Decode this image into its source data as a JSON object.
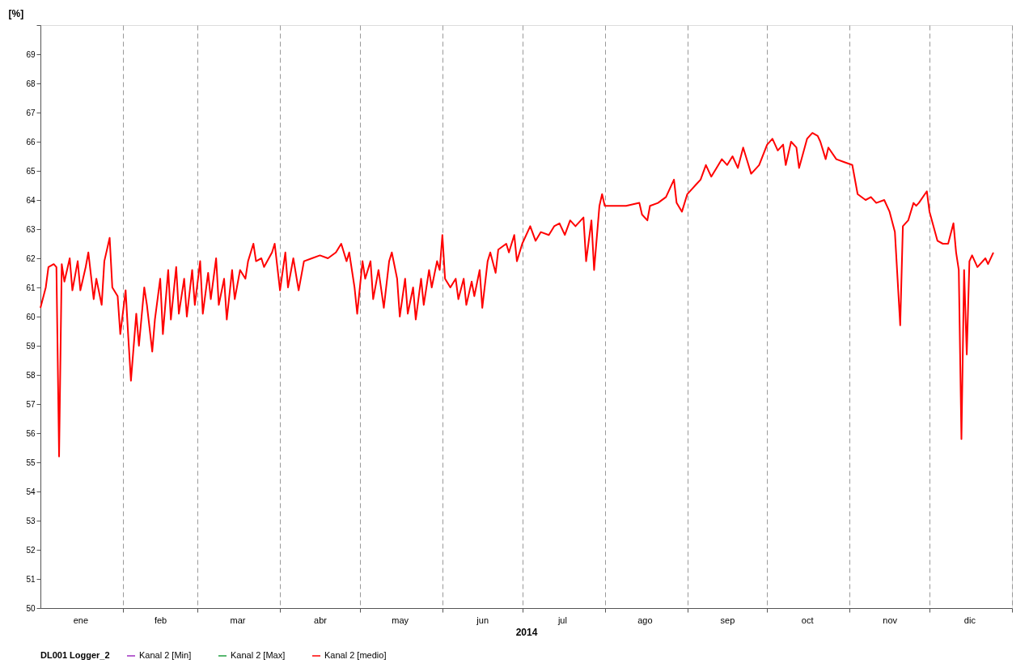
{
  "chart_data": {
    "type": "line",
    "ylabel": "[%]",
    "xlabel": "2014",
    "legend_title": "DL001 Logger_2",
    "legend": "bottom",
    "grid": "x",
    "xlim": [
      "2014-01-01",
      "2015-01-01"
    ],
    "xticks": [
      {
        "value": "2014-02-01",
        "label": null
      },
      {
        "value": "2014-03-01",
        "label": null
      },
      {
        "value": "2014-04-01",
        "label": null
      },
      {
        "value": "2014-05-01",
        "label": null
      },
      {
        "value": "2014-06-01",
        "label": null
      },
      {
        "value": "2014-07-01",
        "label": null
      },
      {
        "value": "2014-08-01",
        "label": null
      },
      {
        "value": "2014-09-01",
        "label": null
      },
      {
        "value": "2014-10-01",
        "label": null
      },
      {
        "value": "2014-11-01",
        "label": null
      },
      {
        "value": "2014-12-01",
        "label": null
      },
      {
        "value": "2015-01-01",
        "label": null
      },
      {
        "value": "2014-01-16",
        "label": "ene"
      },
      {
        "value": "2014-02-15",
        "label": "feb"
      },
      {
        "value": "2014-03-16",
        "label": "mar"
      },
      {
        "value": "2014-04-16",
        "label": "abr"
      },
      {
        "value": "2014-05-16",
        "label": "may"
      },
      {
        "value": "2014-06-16",
        "label": "jun"
      },
      {
        "value": "2014-07-16",
        "label": "jul"
      },
      {
        "value": "2014-08-16",
        "label": "ago"
      },
      {
        "value": "2014-09-16",
        "label": "sep"
      },
      {
        "value": "2014-10-16",
        "label": "oct"
      },
      {
        "value": "2014-11-16",
        "label": "nov"
      },
      {
        "value": "2014-12-16",
        "label": "dic"
      }
    ],
    "ylim": [
      50,
      70
    ],
    "yticks": [
      50,
      51,
      52,
      53,
      54,
      55,
      56,
      57,
      58,
      59,
      60,
      61,
      62,
      63,
      64,
      65,
      66,
      67,
      68,
      69,
      {
        "value": 70,
        "label": null
      }
    ],
    "x": [
      "2014-01-01",
      "2014-01-03",
      "2014-01-04",
      "2014-01-06",
      "2014-01-07",
      "2014-01-08",
      "2014-01-09",
      "2014-01-10",
      "2014-01-12",
      "2014-01-13",
      "2014-01-15",
      "2014-01-16",
      "2014-01-18",
      "2014-01-19",
      "2014-01-21",
      "2014-01-22",
      "2014-01-24",
      "2014-01-25",
      "2014-01-27",
      "2014-01-28",
      "2014-01-30",
      "2014-01-31",
      "2014-02-02",
      "2014-02-03",
      "2014-02-04",
      "2014-02-06",
      "2014-02-07",
      "2014-02-09",
      "2014-02-10",
      "2014-02-12",
      "2014-02-13",
      "2014-02-15",
      "2014-02-16",
      "2014-02-18",
      "2014-02-19",
      "2014-02-21",
      "2014-02-22",
      "2014-02-24",
      "2014-02-25",
      "2014-02-27",
      "2014-02-28",
      "2014-03-02",
      "2014-03-03",
      "2014-03-05",
      "2014-03-06",
      "2014-03-08",
      "2014-03-09",
      "2014-03-11",
      "2014-03-12",
      "2014-03-14",
      "2014-03-15",
      "2014-03-17",
      "2014-03-19",
      "2014-03-20",
      "2014-03-22",
      "2014-03-23",
      "2014-03-25",
      "2014-03-26",
      "2014-03-29",
      "2014-03-30",
      "2014-04-01",
      "2014-04-03",
      "2014-04-04",
      "2014-04-06",
      "2014-04-08",
      "2014-04-10",
      "2014-04-13",
      "2014-04-16",
      "2014-04-19",
      "2014-04-22",
      "2014-04-24",
      "2014-04-26",
      "2014-04-27",
      "2014-04-29",
      "2014-04-30",
      "2014-05-02",
      "2014-05-03",
      "2014-05-05",
      "2014-05-06",
      "2014-05-08",
      "2014-05-10",
      "2014-05-12",
      "2014-05-13",
      "2014-05-15",
      "2014-05-16",
      "2014-05-18",
      "2014-05-19",
      "2014-05-21",
      "2014-05-22",
      "2014-05-24",
      "2014-05-25",
      "2014-05-27",
      "2014-05-28",
      "2014-05-30",
      "2014-05-31",
      "2014-06-01",
      "2014-06-02",
      "2014-06-04",
      "2014-06-06",
      "2014-06-07",
      "2014-06-09",
      "2014-06-10",
      "2014-06-12",
      "2014-06-13",
      "2014-06-15",
      "2014-06-16",
      "2014-06-18",
      "2014-06-19",
      "2014-06-21",
      "2014-06-22",
      "2014-06-25",
      "2014-06-26",
      "2014-06-28",
      "2014-06-29",
      "2014-07-01",
      "2014-07-04",
      "2014-07-06",
      "2014-07-08",
      "2014-07-11",
      "2014-07-13",
      "2014-07-15",
      "2014-07-17",
      "2014-07-19",
      "2014-07-21",
      "2014-07-24",
      "2014-07-25",
      "2014-07-27",
      "2014-07-28",
      "2014-07-30",
      "2014-07-31",
      "2014-08-01",
      "2014-08-05",
      "2014-08-09",
      "2014-08-14",
      "2014-08-15",
      "2014-08-17",
      "2014-08-18",
      "2014-08-21",
      "2014-08-24",
      "2014-08-27",
      "2014-08-28",
      "2014-08-30",
      "2014-09-01",
      "2014-09-03",
      "2014-09-04",
      "2014-09-06",
      "2014-09-08",
      "2014-09-10",
      "2014-09-12",
      "2014-09-14",
      "2014-09-16",
      "2014-09-18",
      "2014-09-20",
      "2014-09-22",
      "2014-09-24",
      "2014-09-25",
      "2014-09-28",
      "2014-10-01",
      "2014-10-03",
      "2014-10-05",
      "2014-10-07",
      "2014-10-08",
      "2014-10-10",
      "2014-10-12",
      "2014-10-13",
      "2014-10-16",
      "2014-10-18",
      "2014-10-20",
      "2014-10-21",
      "2014-10-23",
      "2014-10-24",
      "2014-10-27",
      "2014-10-30",
      "2014-11-02",
      "2014-11-04",
      "2014-11-07",
      "2014-11-09",
      "2014-11-11",
      "2014-11-14",
      "2014-11-16",
      "2014-11-18",
      "2014-11-20",
      "2014-11-21",
      "2014-11-23",
      "2014-11-25",
      "2014-11-26",
      "2014-11-27",
      "2014-11-30",
      "2014-12-01",
      "2014-12-04",
      "2014-12-06",
      "2014-12-08",
      "2014-12-10",
      "2014-12-11",
      "2014-12-12",
      "2014-12-13",
      "2014-12-14",
      "2014-12-15",
      "2014-12-16",
      "2014-12-17",
      "2014-12-19",
      "2014-12-22",
      "2014-12-23",
      "2014-12-25"
    ],
    "series": [
      {
        "name": "Kanal 2 [Min]",
        "color": "#a030c0",
        "values": [
          null,
          null,
          null,
          null,
          null,
          null,
          null,
          null,
          null,
          null,
          null,
          null,
          null,
          null,
          null,
          null,
          null,
          null,
          null,
          null,
          null,
          null,
          null,
          null,
          null,
          null,
          null,
          null,
          null,
          null,
          null,
          null,
          null,
          null,
          null,
          null,
          null,
          null,
          null,
          null,
          null,
          null,
          null,
          null,
          null,
          null,
          null,
          null,
          null,
          null,
          null,
          null,
          null,
          null,
          null,
          null,
          null,
          null,
          null,
          null,
          null,
          null,
          null,
          null,
          null,
          null,
          null,
          null,
          null,
          null,
          null,
          null,
          null,
          null,
          null,
          null,
          null,
          null,
          null,
          null,
          null,
          null,
          null,
          null,
          null,
          null,
          null,
          null,
          null,
          null,
          null,
          null,
          null,
          null,
          null,
          null,
          null,
          null,
          null,
          null,
          null,
          null,
          null,
          null,
          null,
          null,
          null,
          null,
          null,
          null,
          null,
          null,
          null,
          null,
          null,
          null,
          null,
          null,
          null,
          null,
          null,
          null,
          null,
          null,
          null,
          null,
          null,
          null,
          null,
          null,
          null,
          null,
          null,
          null,
          null,
          null,
          null,
          null,
          null,
          null,
          null,
          null,
          null,
          null,
          null,
          null,
          null,
          null,
          null,
          null,
          null,
          null,
          null,
          null,
          null,
          null,
          null,
          null,
          null,
          null,
          null,
          null,
          null,
          null,
          null,
          null,
          null,
          null,
          null,
          null,
          null,
          null,
          null,
          null,
          null,
          null,
          null,
          null,
          null,
          null,
          null,
          null,
          null,
          null,
          null,
          null,
          null,
          null,
          null,
          null,
          null,
          null,
          null,
          null,
          null,
          null,
          null,
          null,
          null,
          null,
          null,
          null,
          null,
          null
        ]
      },
      {
        "name": "Kanal 2 [Max]",
        "color": "#20a040",
        "values": [
          null,
          null,
          null,
          null,
          null,
          null,
          null,
          null,
          null,
          null,
          null,
          null,
          null,
          null,
          null,
          null,
          null,
          null,
          null,
          null,
          null,
          null,
          null,
          null,
          null,
          null,
          null,
          null,
          null,
          null,
          null,
          null,
          null,
          null,
          null,
          null,
          null,
          null,
          null,
          null,
          null,
          null,
          null,
          null,
          null,
          null,
          null,
          null,
          null,
          null,
          null,
          null,
          null,
          null,
          null,
          null,
          null,
          null,
          null,
          null,
          null,
          null,
          null,
          null,
          null,
          null,
          null,
          null,
          null,
          null,
          null,
          null,
          null,
          null,
          null,
          null,
          null,
          null,
          null,
          null,
          null,
          null,
          null,
          null,
          null,
          null,
          null,
          null,
          null,
          null,
          null,
          null,
          null,
          null,
          null,
          null,
          null,
          null,
          null,
          null,
          null,
          null,
          null,
          null,
          null,
          null,
          null,
          null,
          null,
          null,
          null,
          null,
          null,
          null,
          null,
          null,
          null,
          null,
          null,
          null,
          null,
          null,
          null,
          null,
          null,
          null,
          null,
          null,
          null,
          null,
          null,
          null,
          null,
          null,
          null,
          null,
          null,
          null,
          null,
          null,
          null,
          null,
          null,
          null,
          null,
          null,
          null,
          null,
          null,
          null,
          null,
          null,
          null,
          null,
          null,
          null,
          null,
          null,
          null,
          null,
          null,
          null,
          null,
          null,
          null,
          null,
          null,
          null,
          null,
          null,
          null,
          null,
          null,
          null,
          null,
          null,
          null,
          null,
          null,
          null,
          null,
          null,
          null,
          null,
          null,
          null,
          null,
          null,
          null,
          null,
          null,
          null,
          null,
          null,
          null,
          null,
          null,
          null,
          null,
          null,
          null,
          null,
          null,
          null
        ]
      },
      {
        "name": "Kanal 2 [medio]",
        "color": "#ff0000",
        "values": [
          60.3,
          61.0,
          61.7,
          61.8,
          61.7,
          55.2,
          61.8,
          61.2,
          62.0,
          60.9,
          61.9,
          60.9,
          61.7,
          62.2,
          60.6,
          61.3,
          60.4,
          61.9,
          62.7,
          61.0,
          60.7,
          59.4,
          60.9,
          59.3,
          57.8,
          60.1,
          59.0,
          61.0,
          60.4,
          58.8,
          59.9,
          61.3,
          59.4,
          61.6,
          59.9,
          61.7,
          60.1,
          61.3,
          60.0,
          61.6,
          60.4,
          61.9,
          60.1,
          61.5,
          60.6,
          62.0,
          60.4,
          61.3,
          59.9,
          61.6,
          60.6,
          61.6,
          61.3,
          61.9,
          62.5,
          61.9,
          62.0,
          61.7,
          62.2,
          62.5,
          60.9,
          62.2,
          61.0,
          62.0,
          60.9,
          61.9,
          62.0,
          62.1,
          62.0,
          62.2,
          62.5,
          61.9,
          62.2,
          61.0,
          60.1,
          61.9,
          61.3,
          61.9,
          60.6,
          61.6,
          60.3,
          61.9,
          62.2,
          61.3,
          60.0,
          61.3,
          60.1,
          61.0,
          59.9,
          61.3,
          60.4,
          61.6,
          61.0,
          61.9,
          61.6,
          62.8,
          61.3,
          61.0,
          61.3,
          60.6,
          61.3,
          60.4,
          61.2,
          60.7,
          61.6,
          60.3,
          61.9,
          62.2,
          61.5,
          62.3,
          62.5,
          62.2,
          62.8,
          61.9,
          62.5,
          63.1,
          62.6,
          62.9,
          62.8,
          63.1,
          63.2,
          62.8,
          63.3,
          63.1,
          63.4,
          61.9,
          63.3,
          61.6,
          63.8,
          64.2,
          63.8,
          63.8,
          63.8,
          63.9,
          63.5,
          63.3,
          63.8,
          63.9,
          64.1,
          64.7,
          63.9,
          63.6,
          64.2,
          64.4,
          64.5,
          64.7,
          65.2,
          64.8,
          65.1,
          65.4,
          65.2,
          65.5,
          65.1,
          65.8,
          65.2,
          64.9,
          65.2,
          65.9,
          66.1,
          65.7,
          65.9,
          65.2,
          66.0,
          65.8,
          65.1,
          66.1,
          66.3,
          66.2,
          66.0,
          65.4,
          65.8,
          65.4,
          65.3,
          65.2,
          64.2,
          64.0,
          64.1,
          63.9,
          64.0,
          63.6,
          62.9,
          59.7,
          63.1,
          63.3,
          63.9,
          63.8,
          63.9,
          64.3,
          63.6,
          62.6,
          62.5,
          62.5,
          63.2,
          62.2,
          61.6,
          55.8,
          61.6,
          58.7,
          61.9,
          62.1,
          61.7,
          62.0,
          61.8,
          62.2
        ]
      }
    ]
  }
}
